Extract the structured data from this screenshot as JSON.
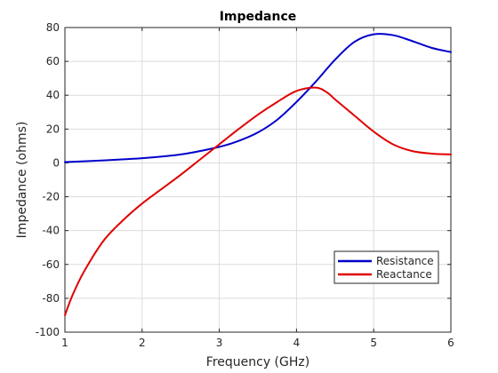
{
  "chart_data": {
    "type": "line",
    "title": "Impedance",
    "xlabel": "Frequency (GHz)",
    "ylabel": "Impedance (ohms)",
    "xlim": [
      1,
      6
    ],
    "ylim": [
      -100,
      80
    ],
    "xticks": [
      1,
      2,
      3,
      4,
      5,
      6
    ],
    "yticks": [
      -100,
      -80,
      -60,
      -40,
      -20,
      0,
      20,
      40,
      60,
      80
    ],
    "grid": true,
    "legend_position": "lower-right",
    "series": [
      {
        "name": "Resistance",
        "color": "#0000cc",
        "x": [
          1.0,
          1.5,
          2.0,
          2.5,
          3.0,
          3.25,
          3.5,
          3.75,
          4.0,
          4.25,
          4.5,
          4.75,
          5.0,
          5.25,
          5.5,
          5.75,
          6.0
        ],
        "y": [
          0.5,
          1.5,
          2.8,
          5.0,
          9.5,
          13.0,
          18.0,
          25.5,
          36.0,
          48.0,
          61.0,
          71.5,
          76.0,
          75.5,
          72.0,
          68.0,
          65.5
        ]
      },
      {
        "name": "Reactance",
        "color": "#e00000",
        "x": [
          1.0,
          1.1,
          1.25,
          1.5,
          1.75,
          2.0,
          2.25,
          2.5,
          2.75,
          3.0,
          3.25,
          3.5,
          3.75,
          4.0,
          4.25,
          4.4,
          4.5,
          4.75,
          5.0,
          5.25,
          5.5,
          5.75,
          6.0
        ],
        "y": [
          -90.0,
          -78.0,
          -64.0,
          -46.0,
          -34.0,
          -24.0,
          -15.5,
          -7.0,
          2.0,
          11.0,
          20.0,
          28.5,
          36.0,
          42.5,
          44.5,
          41.5,
          37.5,
          28.0,
          18.5,
          11.0,
          7.0,
          5.5,
          5.0
        ]
      }
    ]
  }
}
